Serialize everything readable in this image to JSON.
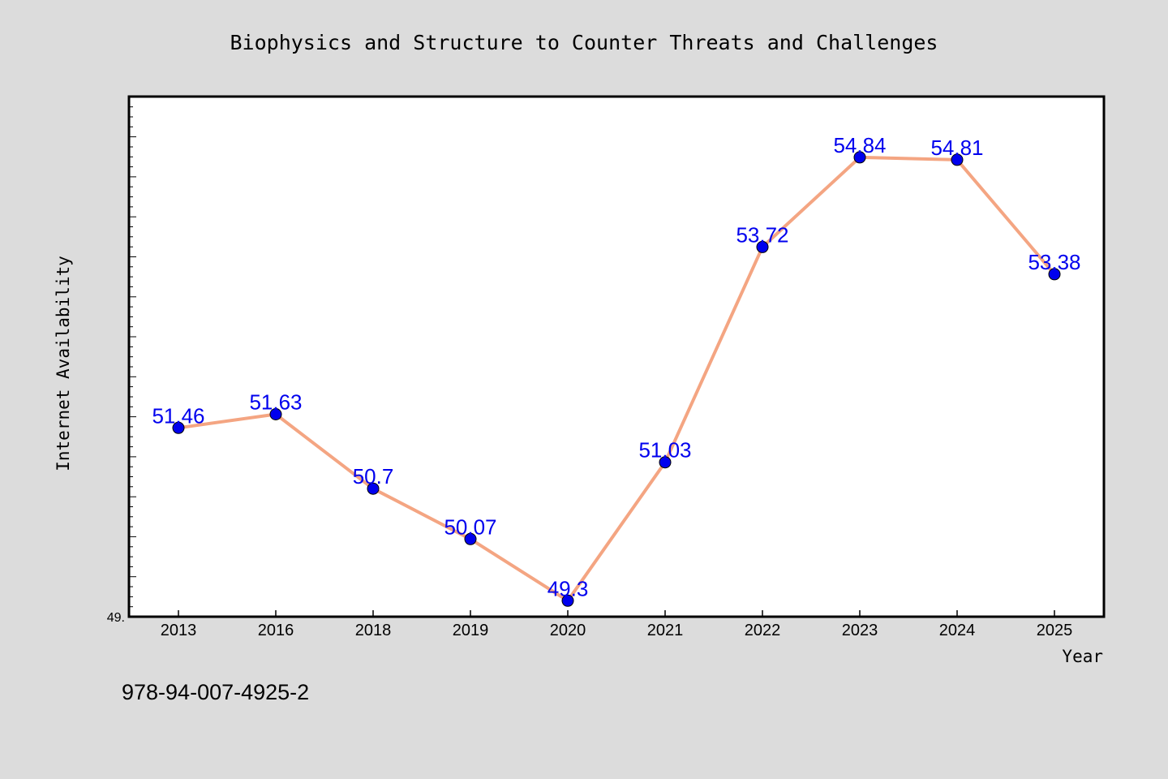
{
  "chart_data": {
    "type": "line",
    "title": "Biophysics and Structure to Counter Threats and Challenges",
    "xlabel": "Year",
    "ylabel": "Internet Availability",
    "categories": [
      "2013",
      "2016",
      "2018",
      "2019",
      "2020",
      "2021",
      "2022",
      "2023",
      "2024",
      "2025"
    ],
    "series": [
      {
        "values": [
          51.46,
          51.63,
          50.7,
          50.07,
          49.3,
          51.03,
          53.72,
          54.84,
          54.81,
          53.38
        ],
        "point_labels": [
          "51.46",
          "51.63",
          "50.7",
          "50.07",
          "49.3",
          "51.03",
          "53.72",
          "54.84",
          "54.81",
          "53.38"
        ]
      }
    ],
    "y_tick_label": "49.",
    "ylim": [
      49.1,
      55.6
    ],
    "grid": false,
    "legend": "none",
    "colors": {
      "line": "#f4a582",
      "marker": "#0000ee",
      "label": "#0000ee"
    }
  },
  "footer": {
    "isbn": "978-94-007-4925-2"
  }
}
